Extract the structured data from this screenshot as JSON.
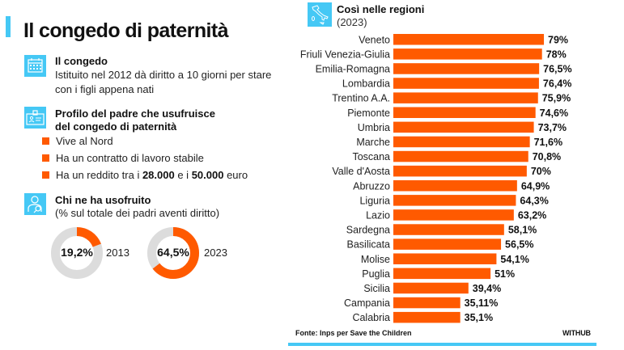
{
  "title": "Il congedo di paternità",
  "colors": {
    "accent": "#45c8f5",
    "bar": "#ff5a00",
    "donut_track": "#dcdcdc"
  },
  "section_congedo": {
    "icon": "calendar-icon",
    "heading": "Il congedo",
    "line1": "Istituito nel 2012 dà diritto a 10 giorni per stare",
    "line2": "con i figli appena nati"
  },
  "section_profilo": {
    "icon": "id-card-icon",
    "heading_line1": "Profilo del padre che usufruisce",
    "heading_line2": "del congedo di paternità",
    "bullets": [
      {
        "text": "Vive al Nord"
      },
      {
        "text": "Ha un contratto di lavoro stabile"
      },
      {
        "pre": "Ha un reddito tra i ",
        "b1": "28.000",
        "mid": " e i ",
        "b2": "50.000",
        "post": " euro"
      }
    ]
  },
  "section_usufruito": {
    "icon": "person-search-icon",
    "heading": "Chi ne ha usofruito",
    "subtitle": "(% sul totale dei padri aventi diritto)",
    "donuts": [
      {
        "label": "19,2%",
        "value": 19.2,
        "year": "2013"
      },
      {
        "label": "64,5%",
        "value": 64.5,
        "year": "2023"
      }
    ]
  },
  "regions_panel": {
    "icon": "italy-map-icon",
    "heading": "Così nelle regioni",
    "subtitle": "(2023)"
  },
  "chart_data": {
    "type": "bar",
    "orientation": "horizontal",
    "title": "Così nelle regioni",
    "subtitle": "(2023)",
    "xlim": [
      0,
      100
    ],
    "grid": false,
    "categories": [
      "Veneto",
      "Friuli Venezia-Giulia",
      "Emilia-Romagna",
      "Lombardia",
      "Trentino A.A.",
      "Piemonte",
      "Umbria",
      "Marche",
      "Toscana",
      "Valle d'Aosta",
      "Abruzzo",
      "Liguria",
      "Lazio",
      "Sardegna",
      "Basilicata",
      "Molise",
      "Puglia",
      "Sicilia",
      "Campania",
      "Calabria"
    ],
    "values": [
      79,
      78,
      76.5,
      76.4,
      75.9,
      74.6,
      73.7,
      71.6,
      70.8,
      70,
      64.9,
      64.3,
      63.2,
      58.1,
      56.5,
      54.1,
      51,
      39.4,
      35.11,
      35.1
    ],
    "value_labels": [
      "79%",
      "78%",
      "76,5%",
      "76,4%",
      "75,9%",
      "74,6%",
      "73,7%",
      "71,6%",
      "70,8%",
      "70%",
      "64,9%",
      "64,3%",
      "63,2%",
      "58,1%",
      "56,5%",
      "54,1%",
      "51%",
      "39,4%",
      "35,11%",
      "35,1%"
    ]
  },
  "footer": {
    "source": "Fonte: Inps per Save the Children",
    "brand": "WITHUB"
  }
}
